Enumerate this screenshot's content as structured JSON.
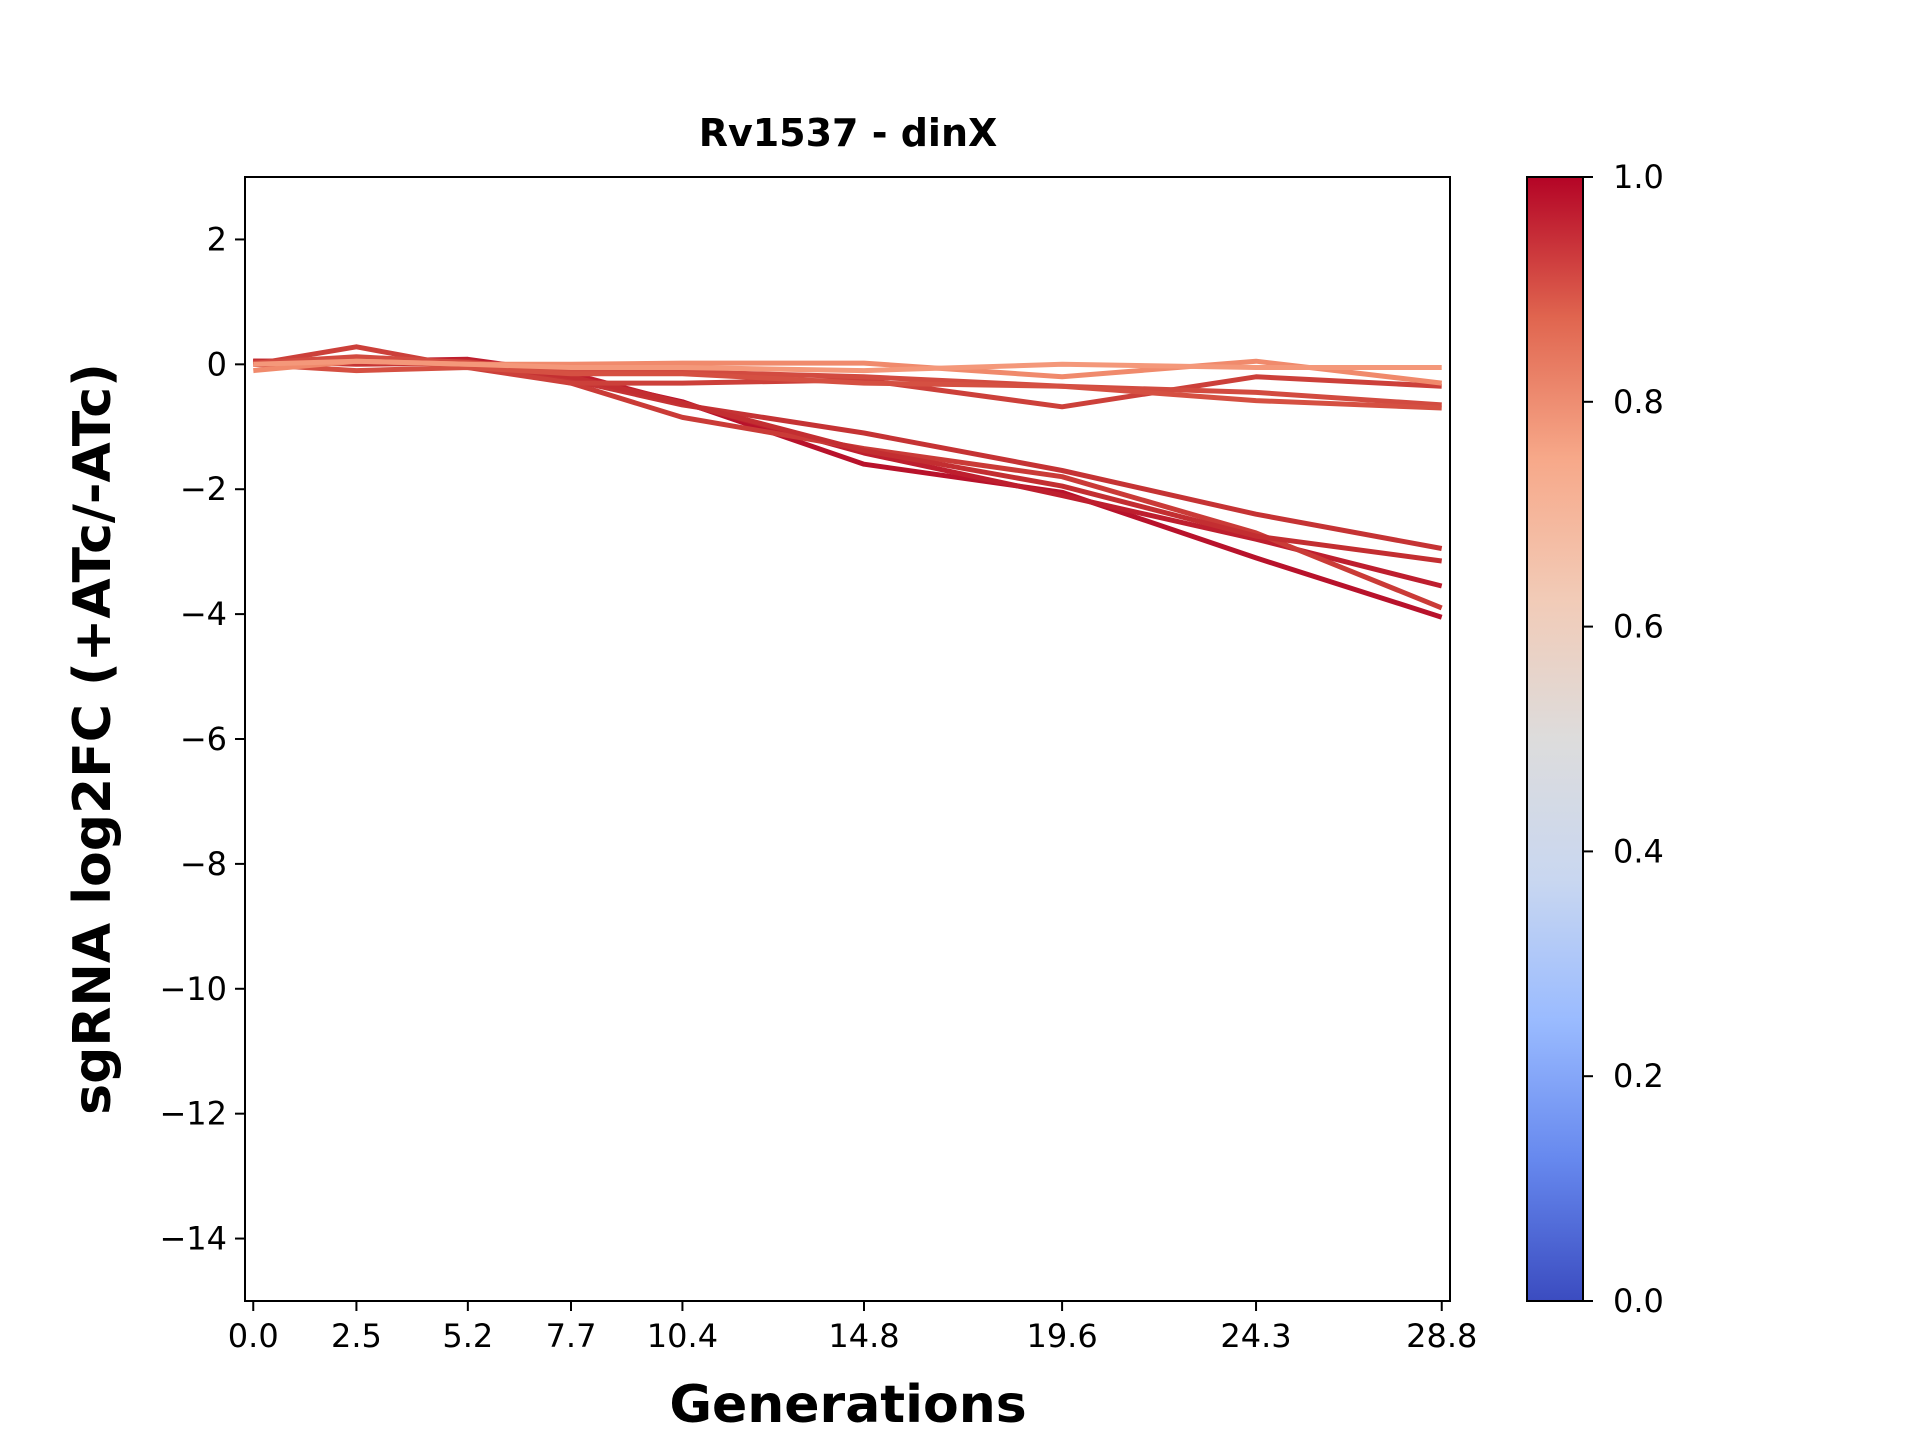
{
  "chart_data": {
    "type": "line",
    "title": "Rv1537 - dinX",
    "xlabel": "Generations",
    "ylabel": "sgRNA log2FC (+ATc/-ATc)",
    "x": [
      0.0,
      2.5,
      5.2,
      7.7,
      10.4,
      14.8,
      19.6,
      24.3,
      28.8
    ],
    "x_tick_labels": [
      "0.0",
      "2.5",
      "5.2",
      "7.7",
      "10.4",
      "14.8",
      "19.6",
      "24.3",
      "28.8"
    ],
    "xlim": [
      -0.2,
      29.0
    ],
    "ylim": [
      -15,
      3
    ],
    "y_ticks": [
      2,
      0,
      -2,
      -4,
      -6,
      -8,
      -10,
      -12,
      -14
    ],
    "y_tick_labels": [
      "2",
      "0",
      "−2",
      "−4",
      "−6",
      "−8",
      "−10",
      "−12",
      "−14"
    ],
    "grid": false,
    "legend": "none",
    "colormap": "coolwarm",
    "colorbar": {
      "min": 0.0,
      "max": 1.0,
      "ticks": [
        0.0,
        0.2,
        0.4,
        0.6,
        0.8,
        1.0
      ],
      "tick_labels": [
        "0.0",
        "0.2",
        "0.4",
        "0.6",
        "0.8",
        "1.0"
      ],
      "stops": [
        "#3b4cc0",
        "#6688ee",
        "#9abbff",
        "#c9d7f0",
        "#dddcdc",
        "#f2cbb7",
        "#f7a889",
        "#e0654f",
        "#b40426"
      ]
    },
    "series": [
      {
        "color_value": 0.97,
        "color": "#b8122b",
        "values": [
          0.05,
          0.05,
          0.05,
          -0.2,
          -0.6,
          -1.6,
          -2.05,
          -3.1,
          -4.05
        ]
      },
      {
        "color_value": 0.95,
        "color": "#be1e2e",
        "values": [
          0.05,
          0.05,
          0.08,
          -0.15,
          -0.62,
          -1.42,
          -2.1,
          -2.8,
          -3.55
        ]
      },
      {
        "color_value": 0.9,
        "color": "#ca3b37",
        "values": [
          0.05,
          0.0,
          0.02,
          -0.3,
          -0.85,
          -1.35,
          -1.8,
          -2.7,
          -3.9
        ]
      },
      {
        "color_value": 0.92,
        "color": "#c53334",
        "values": [
          0.05,
          0.02,
          0.03,
          -0.25,
          -0.65,
          -1.1,
          -1.7,
          -2.4,
          -2.95
        ]
      },
      {
        "color_value": 0.93,
        "color": "#c32e31",
        "values": [
          0.05,
          0.05,
          0.05,
          -0.2,
          -0.62,
          -1.38,
          -1.95,
          -2.75,
          -3.15
        ]
      },
      {
        "color_value": 0.9,
        "color": "#cc403a",
        "values": [
          0.0,
          0.28,
          -0.05,
          -0.3,
          -0.3,
          -0.25,
          -0.68,
          -0.2,
          -0.35
        ]
      },
      {
        "color_value": 0.88,
        "color": "#d24b40",
        "values": [
          0.02,
          0.12,
          0.03,
          -0.1,
          -0.12,
          -0.2,
          -0.35,
          -0.45,
          -0.65
        ]
      },
      {
        "color_value": 0.86,
        "color": "#d55042",
        "values": [
          0.0,
          -0.1,
          -0.05,
          -0.15,
          -0.15,
          -0.3,
          -0.35,
          -0.58,
          -0.7
        ]
      },
      {
        "color_value": 0.75,
        "color": "#f08a6c",
        "values": [
          -0.1,
          0.05,
          0.0,
          0.0,
          0.02,
          0.02,
          -0.2,
          0.05,
          -0.3
        ]
      },
      {
        "color_value": 0.72,
        "color": "#f4987a",
        "values": [
          0.0,
          0.05,
          0.0,
          -0.05,
          -0.05,
          -0.1,
          0.0,
          -0.05,
          -0.05
        ]
      }
    ]
  }
}
